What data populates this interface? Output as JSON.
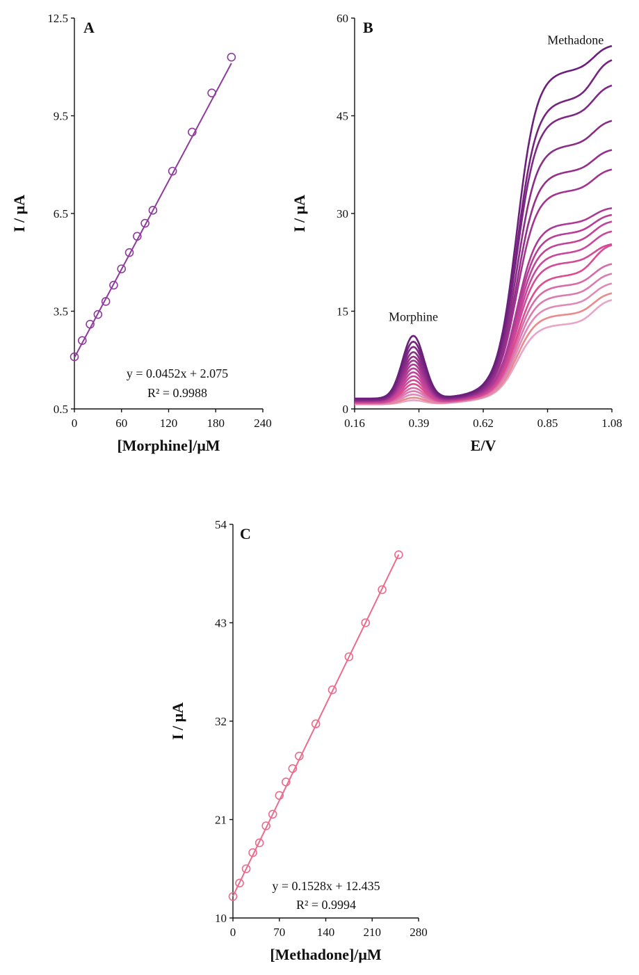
{
  "chart_data": [
    {
      "panel": "A",
      "type": "scatter",
      "xlabel": "[Morphine]/μM",
      "ylabel": "I / μA",
      "xlim": [
        0,
        240
      ],
      "ylim": [
        0.5,
        12.5
      ],
      "xticks": [
        "0",
        "60",
        "120",
        "180",
        "240"
      ],
      "yticks": [
        "0.5",
        "3.5",
        "6.5",
        "9.5",
        "12.5"
      ],
      "equation": "y = 0.0452x + 2.075",
      "r2": "R² = 0.9988",
      "color": "#8e3a9d",
      "fit": {
        "slope": 0.0452,
        "intercept": 2.075,
        "x": [
          0,
          200
        ]
      },
      "points": {
        "x": [
          0,
          10,
          20,
          30,
          40,
          50,
          60,
          70,
          80,
          90,
          100,
          125,
          150,
          175,
          200
        ],
        "y": [
          2.1,
          2.6,
          3.1,
          3.4,
          3.8,
          4.3,
          4.8,
          5.3,
          5.8,
          6.2,
          6.6,
          7.8,
          9.0,
          10.2,
          11.3
        ]
      }
    },
    {
      "panel": "B",
      "type": "line",
      "xlabel": "E/V",
      "ylabel": "I / μA",
      "xlim": [
        0.16,
        1.08
      ],
      "ylim": [
        0,
        60
      ],
      "xticks": [
        "0.16",
        "0.39",
        "0.62",
        "0.85",
        "1.08"
      ],
      "yticks": [
        "0",
        "15",
        "30",
        "45",
        "60"
      ],
      "annotations": [
        {
          "text": "Morphine",
          "x": 0.37,
          "y": 13.5
        },
        {
          "text": "Methadone",
          "x": 0.95,
          "y": 56
        }
      ],
      "curves": [
        {
          "color": "#6b1f7a",
          "base": 1.6,
          "peak": 11.2,
          "plateau": 52.0,
          "end": 56.0
        },
        {
          "color": "#74237f",
          "base": 1.5,
          "peak": 10.3,
          "plateau": 47.5,
          "end": 54.0
        },
        {
          "color": "#7d2885",
          "base": 1.4,
          "peak": 9.5,
          "plateau": 45.0,
          "end": 50.0
        },
        {
          "color": "#8a2d85",
          "base": 1.35,
          "peak": 8.7,
          "plateau": 40.5,
          "end": 44.5
        },
        {
          "color": "#952f8a",
          "base": 1.3,
          "peak": 8.0,
          "plateau": 36.5,
          "end": 40.0
        },
        {
          "color": "#a0348f",
          "base": 1.25,
          "peak": 7.4,
          "plateau": 33.5,
          "end": 37.0
        },
        {
          "color": "#ac3a93",
          "base": 1.2,
          "peak": 6.8,
          "plateau": 28.5,
          "end": 31.0
        },
        {
          "color": "#b63e96",
          "base": 1.15,
          "peak": 6.2,
          "plateau": 27.0,
          "end": 30.0
        },
        {
          "color": "#c04398",
          "base": 1.1,
          "peak": 5.6,
          "plateau": 25.5,
          "end": 29.0
        },
        {
          "color": "#c9479a",
          "base": 1.05,
          "peak": 5.0,
          "plateau": 24.0,
          "end": 27.5
        },
        {
          "color": "#d24a98",
          "base": 1.0,
          "peak": 4.4,
          "plateau": 22.5,
          "end": 25.5
        },
        {
          "color": "#e04a8e",
          "base": 0.95,
          "peak": 3.8,
          "plateau": 20.5,
          "end": 25.5
        },
        {
          "color": "#d86aa8",
          "base": 0.9,
          "peak": 3.2,
          "plateau": 19.0,
          "end": 22.5
        },
        {
          "color": "#dc7ab0",
          "base": 0.85,
          "peak": 2.7,
          "plateau": 17.5,
          "end": 21.0
        },
        {
          "color": "#e08ab8",
          "base": 0.8,
          "peak": 2.2,
          "plateau": 16.0,
          "end": 19.5
        },
        {
          "color": "#ea8a8a",
          "base": 0.75,
          "peak": 1.7,
          "plateau": 14.5,
          "end": 18.0
        },
        {
          "color": "#e8a5c8",
          "base": 0.7,
          "peak": 1.3,
          "plateau": 13.0,
          "end": 17.0
        }
      ]
    },
    {
      "panel": "C",
      "type": "scatter",
      "xlabel": "[Methadone]/μM",
      "ylabel": "I / μA",
      "xlim": [
        0,
        280
      ],
      "ylim": [
        10,
        54
      ],
      "xticks": [
        "0",
        "70",
        "140",
        "210",
        "280"
      ],
      "yticks": [
        "10",
        "21",
        "32",
        "43",
        "54"
      ],
      "equation": "y = 0.1528x + 12.435",
      "r2": "R² = 0.9994",
      "color": "#ec6b8c",
      "fit": {
        "slope": 0.1528,
        "intercept": 12.435,
        "x": [
          0,
          250
        ]
      },
      "points": {
        "x": [
          0,
          10,
          20,
          30,
          40,
          50,
          60,
          70,
          80,
          90,
          100,
          125,
          150,
          175,
          200,
          225,
          250
        ],
        "y": [
          12.4,
          13.9,
          15.5,
          17.3,
          18.4,
          20.3,
          21.6,
          23.7,
          25.2,
          26.7,
          28.1,
          31.7,
          35.5,
          39.2,
          43.0,
          46.7,
          50.6
        ]
      }
    }
  ]
}
